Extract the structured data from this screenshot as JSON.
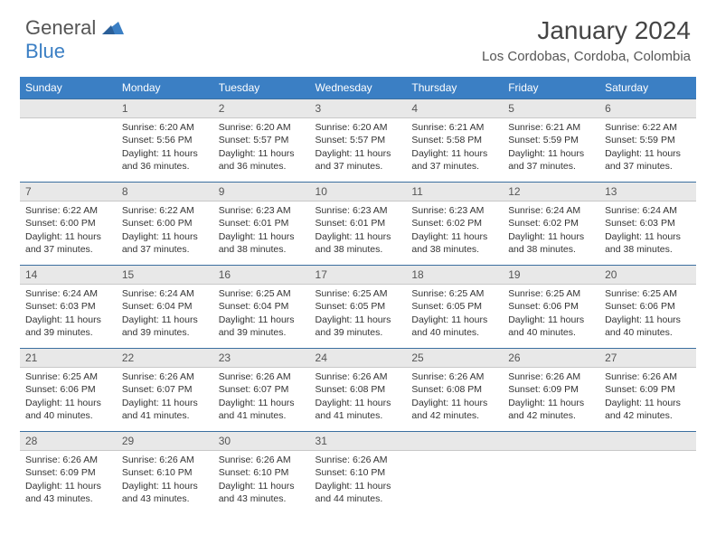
{
  "brand": {
    "part1": "General",
    "part2": "Blue"
  },
  "title": "January 2024",
  "location": "Los Cordobas, Cordoba, Colombia",
  "colors": {
    "header_bg": "#3b7fc4",
    "header_text": "#ffffff",
    "daynum_bg": "#e8e8e8",
    "rule": "#3b6fa0",
    "text": "#333333"
  },
  "weekdays": [
    "Sunday",
    "Monday",
    "Tuesday",
    "Wednesday",
    "Thursday",
    "Friday",
    "Saturday"
  ],
  "weeks": [
    [
      null,
      {
        "n": "1",
        "sr": "6:20 AM",
        "ss": "5:56 PM",
        "dl": "11 hours and 36 minutes."
      },
      {
        "n": "2",
        "sr": "6:20 AM",
        "ss": "5:57 PM",
        "dl": "11 hours and 36 minutes."
      },
      {
        "n": "3",
        "sr": "6:20 AM",
        "ss": "5:57 PM",
        "dl": "11 hours and 37 minutes."
      },
      {
        "n": "4",
        "sr": "6:21 AM",
        "ss": "5:58 PM",
        "dl": "11 hours and 37 minutes."
      },
      {
        "n": "5",
        "sr": "6:21 AM",
        "ss": "5:59 PM",
        "dl": "11 hours and 37 minutes."
      },
      {
        "n": "6",
        "sr": "6:22 AM",
        "ss": "5:59 PM",
        "dl": "11 hours and 37 minutes."
      }
    ],
    [
      {
        "n": "7",
        "sr": "6:22 AM",
        "ss": "6:00 PM",
        "dl": "11 hours and 37 minutes."
      },
      {
        "n": "8",
        "sr": "6:22 AM",
        "ss": "6:00 PM",
        "dl": "11 hours and 37 minutes."
      },
      {
        "n": "9",
        "sr": "6:23 AM",
        "ss": "6:01 PM",
        "dl": "11 hours and 38 minutes."
      },
      {
        "n": "10",
        "sr": "6:23 AM",
        "ss": "6:01 PM",
        "dl": "11 hours and 38 minutes."
      },
      {
        "n": "11",
        "sr": "6:23 AM",
        "ss": "6:02 PM",
        "dl": "11 hours and 38 minutes."
      },
      {
        "n": "12",
        "sr": "6:24 AM",
        "ss": "6:02 PM",
        "dl": "11 hours and 38 minutes."
      },
      {
        "n": "13",
        "sr": "6:24 AM",
        "ss": "6:03 PM",
        "dl": "11 hours and 38 minutes."
      }
    ],
    [
      {
        "n": "14",
        "sr": "6:24 AM",
        "ss": "6:03 PM",
        "dl": "11 hours and 39 minutes."
      },
      {
        "n": "15",
        "sr": "6:24 AM",
        "ss": "6:04 PM",
        "dl": "11 hours and 39 minutes."
      },
      {
        "n": "16",
        "sr": "6:25 AM",
        "ss": "6:04 PM",
        "dl": "11 hours and 39 minutes."
      },
      {
        "n": "17",
        "sr": "6:25 AM",
        "ss": "6:05 PM",
        "dl": "11 hours and 39 minutes."
      },
      {
        "n": "18",
        "sr": "6:25 AM",
        "ss": "6:05 PM",
        "dl": "11 hours and 40 minutes."
      },
      {
        "n": "19",
        "sr": "6:25 AM",
        "ss": "6:06 PM",
        "dl": "11 hours and 40 minutes."
      },
      {
        "n": "20",
        "sr": "6:25 AM",
        "ss": "6:06 PM",
        "dl": "11 hours and 40 minutes."
      }
    ],
    [
      {
        "n": "21",
        "sr": "6:25 AM",
        "ss": "6:06 PM",
        "dl": "11 hours and 40 minutes."
      },
      {
        "n": "22",
        "sr": "6:26 AM",
        "ss": "6:07 PM",
        "dl": "11 hours and 41 minutes."
      },
      {
        "n": "23",
        "sr": "6:26 AM",
        "ss": "6:07 PM",
        "dl": "11 hours and 41 minutes."
      },
      {
        "n": "24",
        "sr": "6:26 AM",
        "ss": "6:08 PM",
        "dl": "11 hours and 41 minutes."
      },
      {
        "n": "25",
        "sr": "6:26 AM",
        "ss": "6:08 PM",
        "dl": "11 hours and 42 minutes."
      },
      {
        "n": "26",
        "sr": "6:26 AM",
        "ss": "6:09 PM",
        "dl": "11 hours and 42 minutes."
      },
      {
        "n": "27",
        "sr": "6:26 AM",
        "ss": "6:09 PM",
        "dl": "11 hours and 42 minutes."
      }
    ],
    [
      {
        "n": "28",
        "sr": "6:26 AM",
        "ss": "6:09 PM",
        "dl": "11 hours and 43 minutes."
      },
      {
        "n": "29",
        "sr": "6:26 AM",
        "ss": "6:10 PM",
        "dl": "11 hours and 43 minutes."
      },
      {
        "n": "30",
        "sr": "6:26 AM",
        "ss": "6:10 PM",
        "dl": "11 hours and 43 minutes."
      },
      {
        "n": "31",
        "sr": "6:26 AM",
        "ss": "6:10 PM",
        "dl": "11 hours and 44 minutes."
      },
      null,
      null,
      null
    ]
  ],
  "labels": {
    "sunrise": "Sunrise:",
    "sunset": "Sunset:",
    "daylight": "Daylight:"
  }
}
